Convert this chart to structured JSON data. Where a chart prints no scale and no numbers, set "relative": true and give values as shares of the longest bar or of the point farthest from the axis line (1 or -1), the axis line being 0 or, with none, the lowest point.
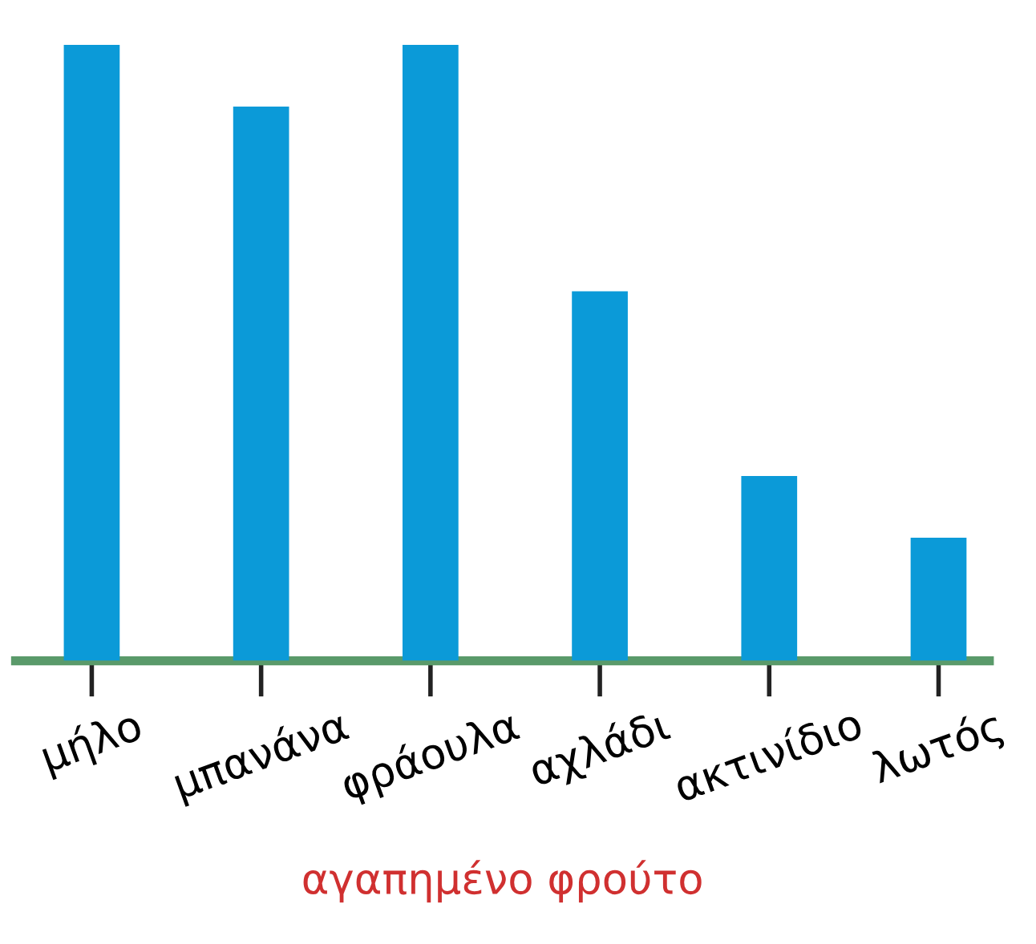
{
  "chart_data": {
    "type": "bar",
    "xlabel": "αγαπημένο φρούτο",
    "categories": [
      "μήλο",
      "μπανάνα",
      "φράουλα",
      "αχλάδι",
      "ακτινίδιο",
      "λωτός"
    ],
    "relative": true,
    "series": [
      {
        "color": "#0b9ad8",
        "values": [
          1.0,
          0.9,
          1.0,
          0.6,
          0.3,
          0.2
        ]
      }
    ]
  }
}
